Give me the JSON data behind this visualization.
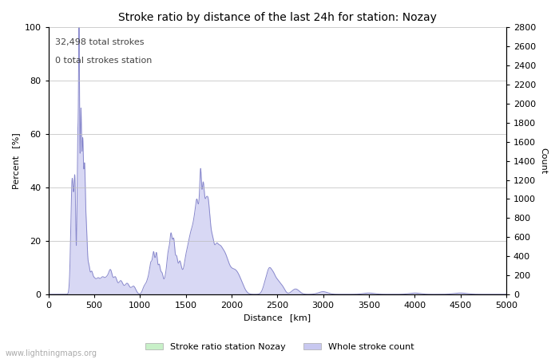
{
  "title": "Stroke ratio by distance of the last 24h for station: Nozay",
  "xlabel": "Distance  [km]",
  "ylabel_left": "Percent  [%]",
  "ylabel_right": "Count",
  "annotation_line1": "32,498 total strokes",
  "annotation_line2": "0 total strokes station",
  "watermark": "www.lightningmaps.org",
  "xlim": [
    0,
    5000
  ],
  "ylim_left": [
    0,
    100
  ],
  "ylim_right": [
    0,
    2800
  ],
  "xticks": [
    0,
    500,
    1000,
    1500,
    2000,
    2500,
    3000,
    3500,
    4000,
    4500,
    5000
  ],
  "yticks_left": [
    0,
    20,
    40,
    60,
    80,
    100
  ],
  "yticks_right": [
    0,
    200,
    400,
    600,
    800,
    1000,
    1200,
    1400,
    1600,
    1800,
    2000,
    2200,
    2400,
    2600,
    2800
  ],
  "legend_labels": [
    "Stroke ratio station Nozay",
    "Whole stroke count"
  ],
  "legend_colors": [
    "#c8f0c8",
    "#c8c8f0"
  ],
  "line_color": "#8888cc",
  "fill_color_station": "#c8f0c8",
  "fill_color_whole": "#d8d8f4",
  "background_color": "#ffffff",
  "grid_color": "#bbbbbb",
  "title_fontsize": 10,
  "label_fontsize": 8,
  "tick_fontsize": 8,
  "annotation_fontsize": 8,
  "watermark_fontsize": 7
}
